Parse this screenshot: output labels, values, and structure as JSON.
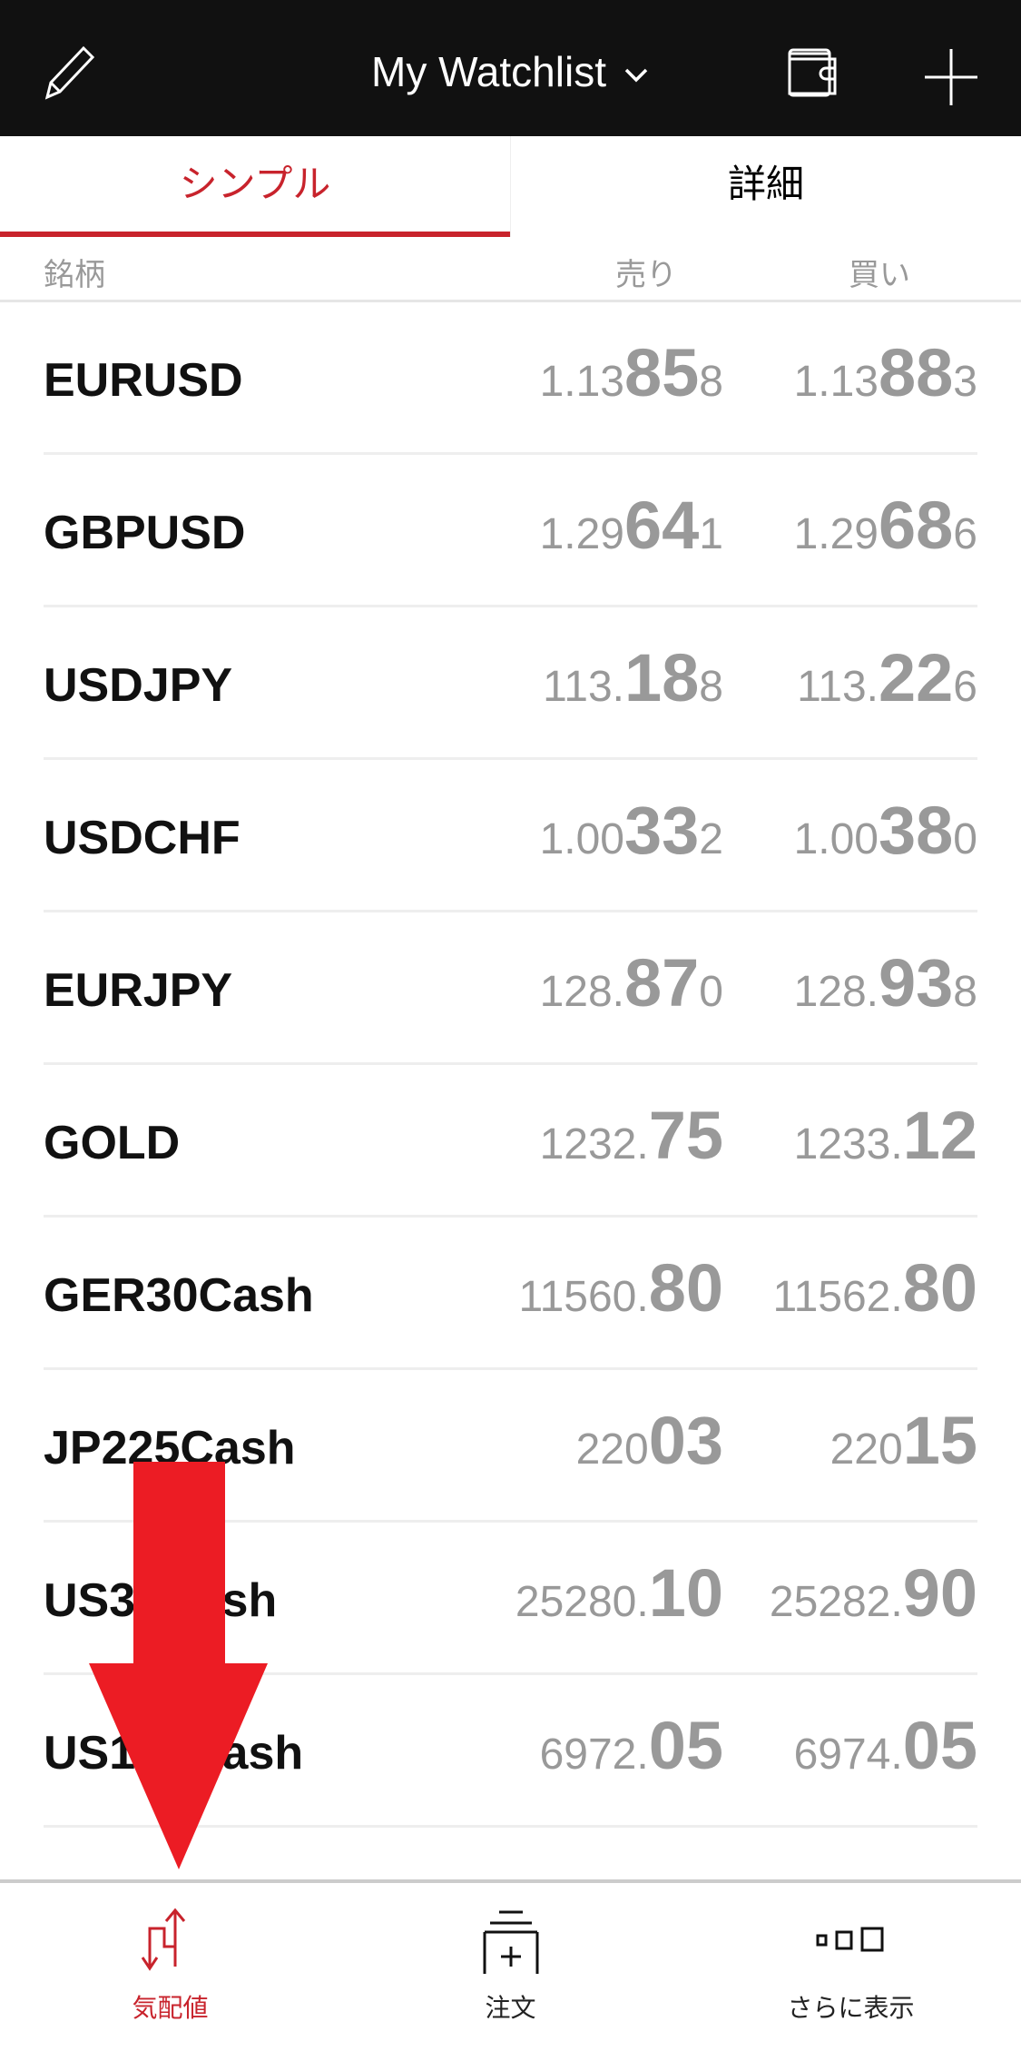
{
  "header": {
    "title": "My Watchlist",
    "left_icon": "pencil-icon",
    "right_icons": [
      "wallet-icon",
      "plus-icon"
    ]
  },
  "tabs": [
    {
      "label": "シンプル",
      "active": true
    },
    {
      "label": "詳細",
      "active": false
    }
  ],
  "columns": {
    "symbol": "銘柄",
    "sell": "売り",
    "buy": "買い"
  },
  "rows": [
    {
      "symbol": "EURUSD",
      "sell": {
        "pre": "1.13",
        "big": "85",
        "post": "8"
      },
      "buy": {
        "pre": "1.13",
        "big": "88",
        "post": "3"
      }
    },
    {
      "symbol": "GBPUSD",
      "sell": {
        "pre": "1.29",
        "big": "64",
        "post": "1"
      },
      "buy": {
        "pre": "1.29",
        "big": "68",
        "post": "6"
      }
    },
    {
      "symbol": "USDJPY",
      "sell": {
        "pre": "113.",
        "big": "18",
        "post": "8"
      },
      "buy": {
        "pre": "113.",
        "big": "22",
        "post": "6"
      }
    },
    {
      "symbol": "USDCHF",
      "sell": {
        "pre": "1.00",
        "big": "33",
        "post": "2"
      },
      "buy": {
        "pre": "1.00",
        "big": "38",
        "post": "0"
      }
    },
    {
      "symbol": "EURJPY",
      "sell": {
        "pre": "128.",
        "big": "87",
        "post": "0"
      },
      "buy": {
        "pre": "128.",
        "big": "93",
        "post": "8"
      }
    },
    {
      "symbol": "GOLD",
      "sell": {
        "pre": "1232.",
        "big": "75",
        "post": ""
      },
      "buy": {
        "pre": "1233.",
        "big": "12",
        "post": ""
      }
    },
    {
      "symbol": "GER30Cash",
      "sell": {
        "pre": "11560.",
        "big": "80",
        "post": ""
      },
      "buy": {
        "pre": "11562.",
        "big": "80",
        "post": ""
      }
    },
    {
      "symbol": "JP225Cash",
      "sell": {
        "pre": "220",
        "big": "03",
        "post": ""
      },
      "buy": {
        "pre": "220",
        "big": "15",
        "post": ""
      }
    },
    {
      "symbol": "US30Cash",
      "sell": {
        "pre": "25280.",
        "big": "10",
        "post": ""
      },
      "buy": {
        "pre": "25282.",
        "big": "90",
        "post": ""
      }
    },
    {
      "symbol": "US100Cash",
      "sell": {
        "pre": "6972.",
        "big": "05",
        "post": ""
      },
      "buy": {
        "pre": "6974.",
        "big": "05",
        "post": ""
      }
    }
  ],
  "nav": [
    {
      "label": "気配値",
      "icon": "quotes-arrows-icon",
      "active": true
    },
    {
      "label": "注文",
      "icon": "order-add-icon",
      "active": false
    },
    {
      "label": "さらに表示",
      "icon": "more-squares-icon",
      "active": false
    }
  ],
  "colors": {
    "accent": "#c8232c",
    "header_bg": "#111111",
    "price": "#999999",
    "annotation_arrow": "#ec1c24"
  }
}
